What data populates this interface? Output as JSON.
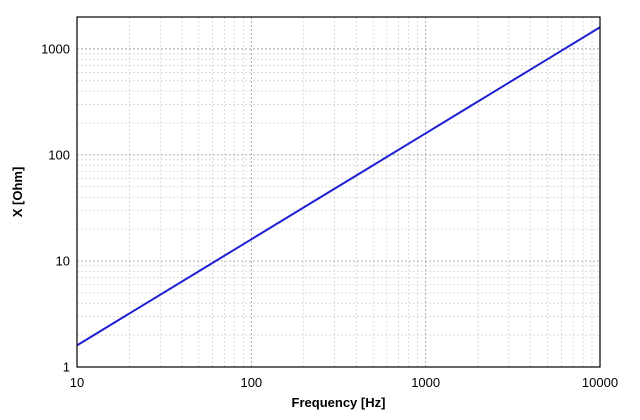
{
  "chart_data": {
    "type": "line",
    "title": "",
    "xlabel": "Frequency [Hz]",
    "ylabel": "X [Ohm]",
    "xscale": "log",
    "yscale": "log",
    "xlim": [
      10,
      10000
    ],
    "ylim": [
      1,
      2000
    ],
    "grid": true,
    "legend": "none",
    "x_ticks": [
      10,
      100,
      1000,
      10000
    ],
    "x_tick_labels": [
      "10",
      "100",
      "1000",
      "10000"
    ],
    "y_ticks": [
      1,
      10,
      100,
      1000
    ],
    "y_tick_labels": [
      "1",
      "10",
      "100",
      "1000"
    ],
    "series": [
      {
        "color": "#1f1fd6",
        "x": [
          10,
          20,
          50,
          100,
          200,
          500,
          1000,
          2000,
          5000,
          10000
        ],
        "y": [
          1.6,
          3.2,
          8.0,
          16.0,
          32.0,
          80.0,
          160.0,
          320.0,
          800.0,
          1600.0
        ]
      }
    ]
  }
}
